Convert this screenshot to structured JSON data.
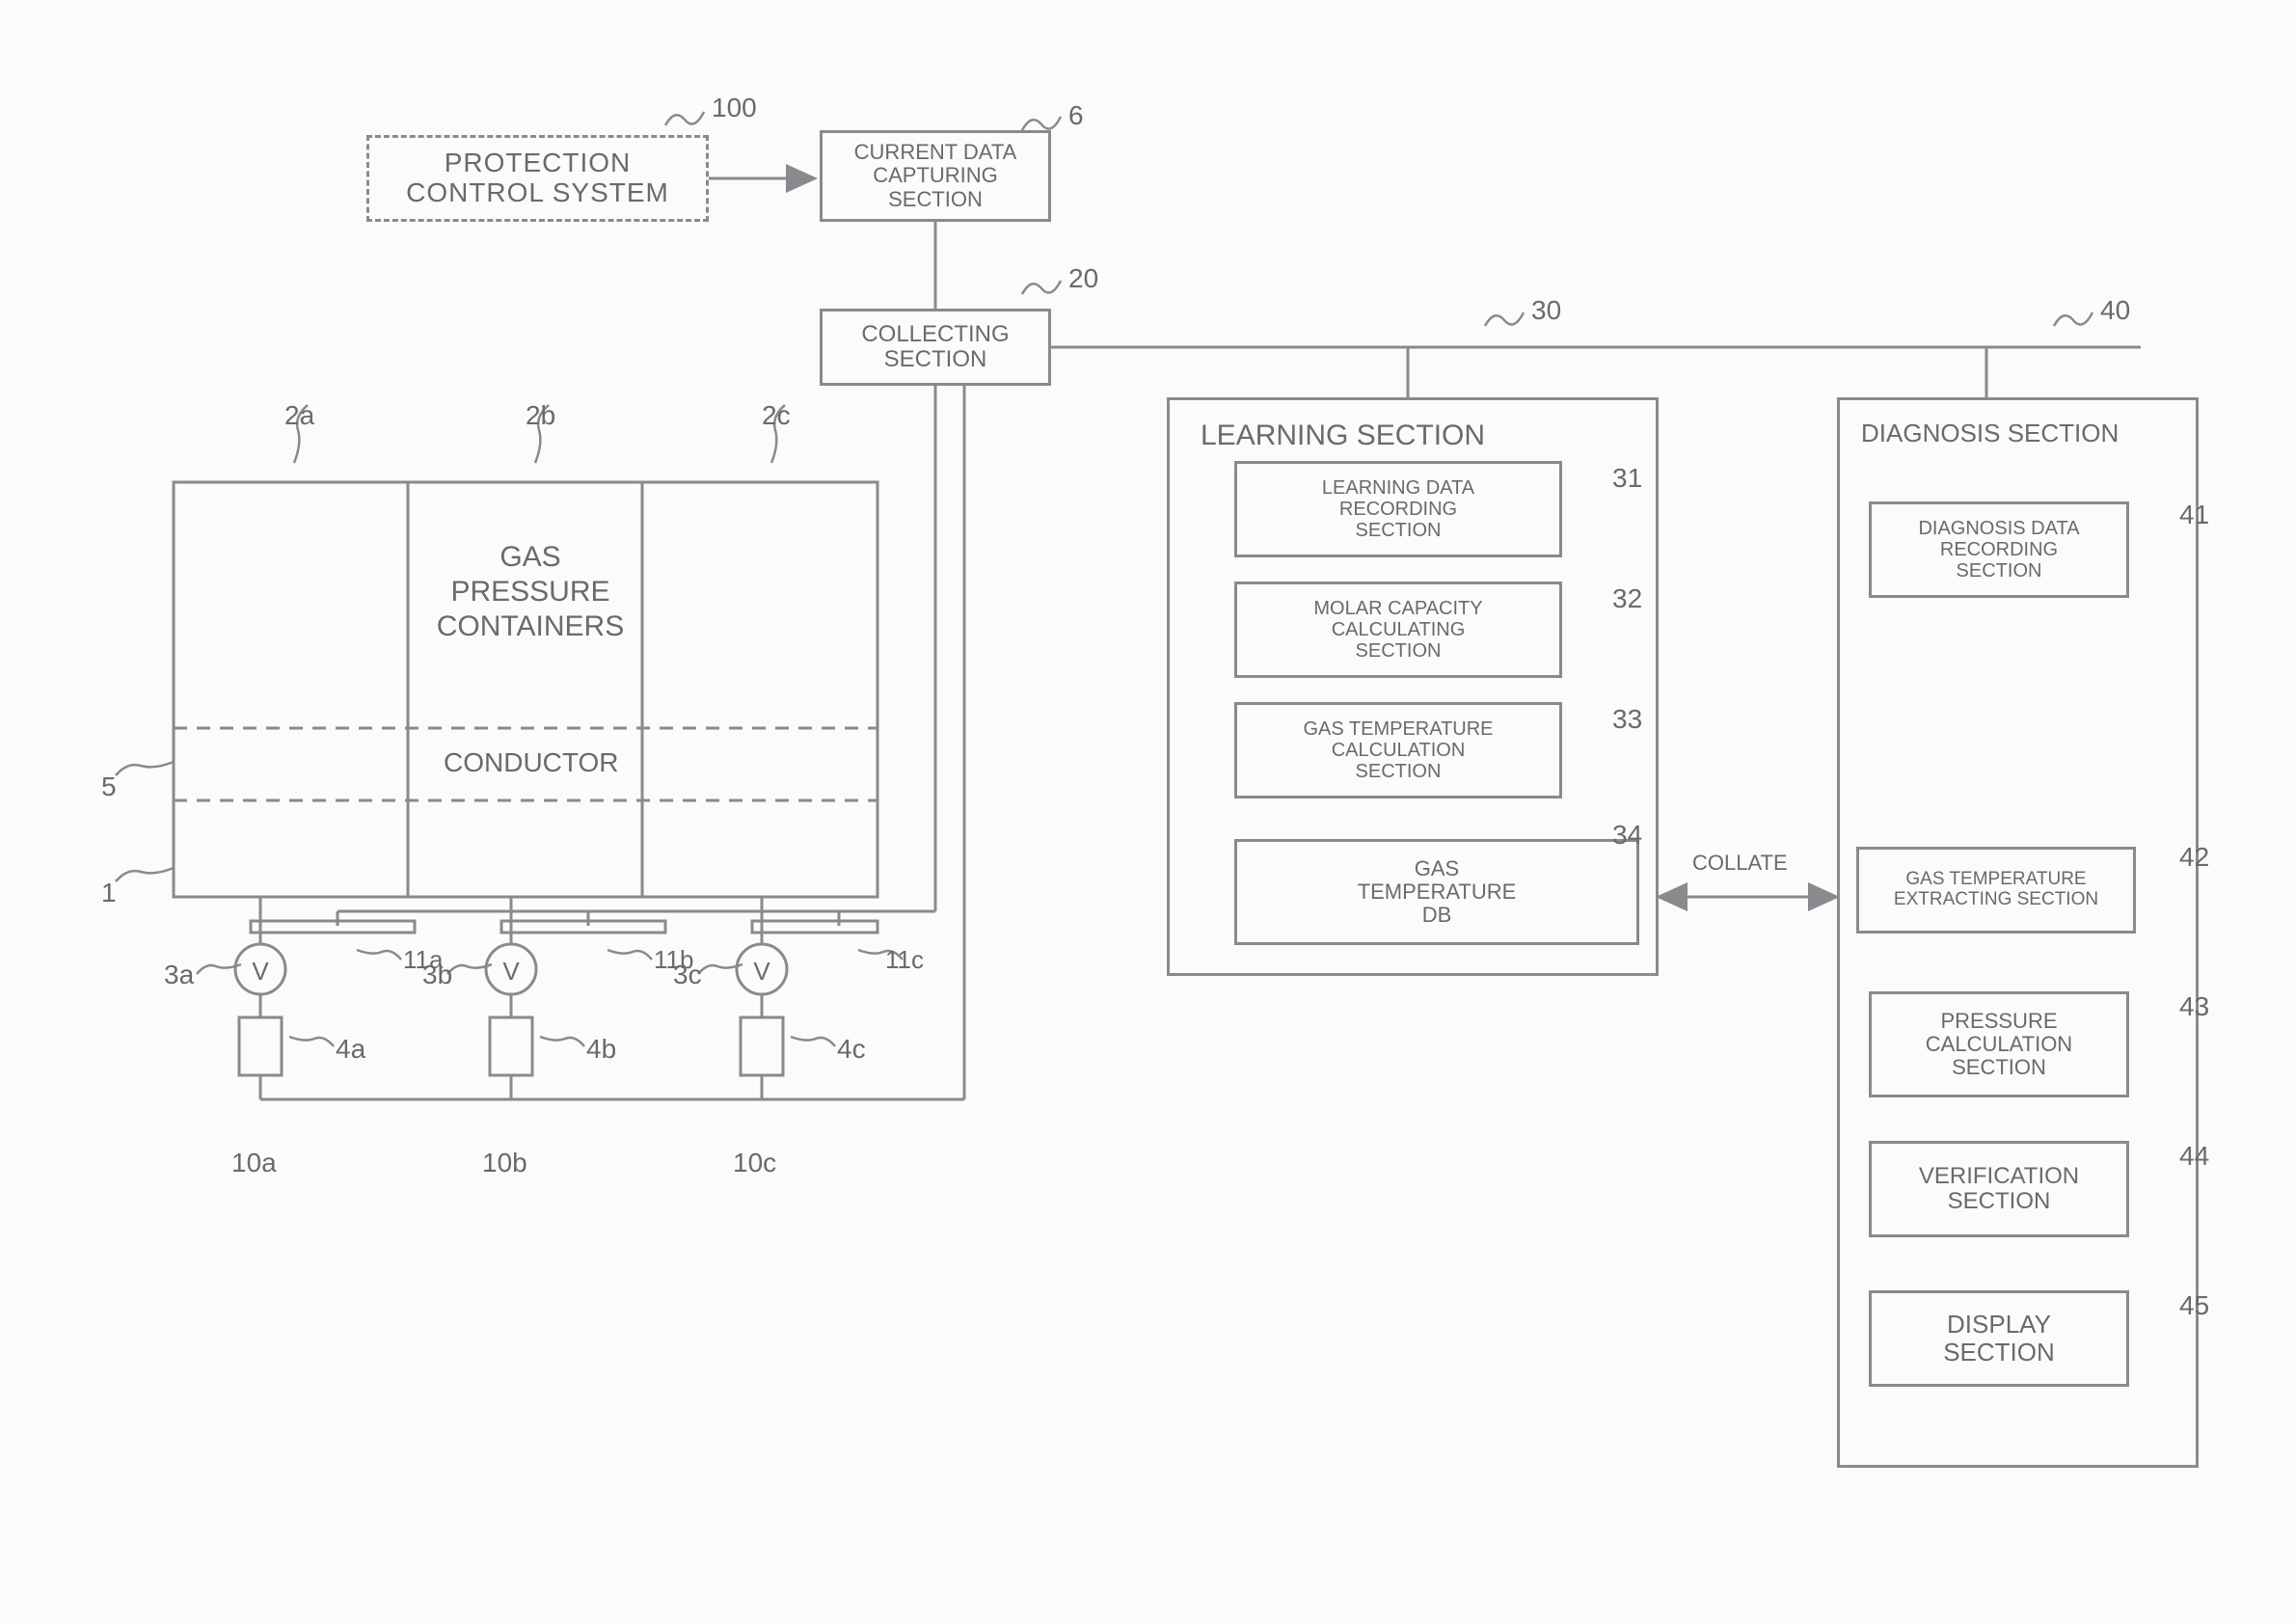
{
  "colors": {
    "stroke": "#8a8a8e",
    "text": "#6a6a6e",
    "bg": "#fbfbfb"
  },
  "typography": {
    "title_fontsize": 30,
    "label_fontsize": 28,
    "box_fontsize": 24
  },
  "top": {
    "protection": {
      "label": "PROTECTION\nCONTROL SYSTEM",
      "ref": "100"
    },
    "capturing": {
      "label": "CURRENT DATA\nCAPTURING\nSECTION",
      "ref": "6"
    },
    "collecting": {
      "label": "COLLECTING\nSECTION",
      "ref": "20"
    }
  },
  "containers": {
    "upper_label": "GAS\nPRESSURE\nCONTAINERS",
    "lower_label": "CONDUCTOR",
    "refs_top": [
      "2a",
      "2b",
      "2c"
    ],
    "left_ref_upper": "5",
    "left_ref_lower": "1",
    "bottom_v_refs": [
      "3a",
      "3b",
      "3c"
    ],
    "bottom_block_refs": [
      "4a",
      "4b",
      "4c"
    ],
    "bottom_line_refs": [
      "11a",
      "11b",
      "11c"
    ],
    "bottom_lower_refs": [
      "10a",
      "10b",
      "10c"
    ]
  },
  "learning": {
    "title": "LEARNING SECTION",
    "ref": "30",
    "items": [
      {
        "label": "LEARNING DATA\nRECORDING\nSECTION",
        "ref": "31"
      },
      {
        "label": "MOLAR CAPACITY\nCALCULATING\nSECTION",
        "ref": "32"
      },
      {
        "label": "GAS TEMPERATURE\nCALCULATION\nSECTION",
        "ref": "33"
      },
      {
        "label": "GAS\nTEMPERATURE\nDB",
        "ref": "34"
      }
    ]
  },
  "diagnosis": {
    "title": "DIAGNOSIS SECTION",
    "ref": "40",
    "items": [
      {
        "label": "DIAGNOSIS DATA\nRECORDING\nSECTION",
        "ref": "41"
      },
      {
        "label": "GAS TEMPERATURE\nEXTRACTING SECTION",
        "ref": "42"
      },
      {
        "label": "PRESSURE\nCALCULATION\nSECTION",
        "ref": "43"
      },
      {
        "label": "VERIFICATION\nSECTION",
        "ref": "44"
      },
      {
        "label": "DISPLAY\nSECTION",
        "ref": "45"
      }
    ]
  },
  "collate_label": "COLLATE"
}
